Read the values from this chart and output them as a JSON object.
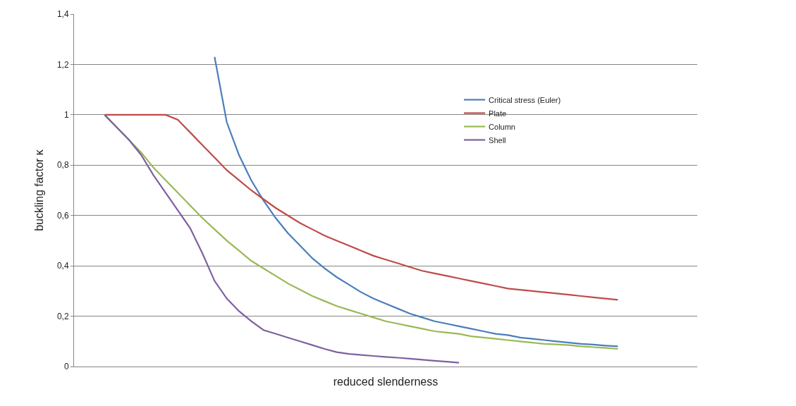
{
  "chart_data": {
    "type": "line",
    "xlabel": "reduced slenderness",
    "ylabel": "buckling factor κ",
    "categories": [
      null,
      null,
      null,
      null,
      null,
      null,
      null,
      null,
      null,
      null,
      null,
      null,
      null,
      null,
      null,
      null,
      null,
      null,
      null,
      null,
      null,
      null,
      null,
      null,
      null,
      null,
      null,
      null,
      null,
      null,
      null,
      null,
      null,
      null,
      null,
      null,
      null,
      null,
      null,
      null,
      null,
      null,
      null,
      null,
      null,
      null,
      null,
      null,
      null,
      null,
      null
    ],
    "series": [
      {
        "name": "Critical stress (Euler)",
        "color": "#4a7ebb",
        "values": [
          null,
          null,
          null,
          null,
          null,
          null,
          null,
          null,
          null,
          null,
          null,
          1.23,
          0.97,
          0.84,
          0.74,
          0.66,
          0.59,
          0.53,
          0.48,
          0.43,
          0.39,
          0.355,
          0.325,
          0.295,
          0.27,
          0.25,
          0.23,
          0.21,
          0.195,
          0.18,
          0.17,
          0.16,
          0.15,
          0.14,
          0.13,
          0.125,
          0.115,
          0.11,
          0.105,
          0.1,
          0.095,
          0.09,
          0.087,
          0.083,
          0.08,
          null,
          null,
          null,
          null,
          null,
          null
        ]
      },
      {
        "name": "Plate",
        "color": "#be4b48",
        "values": [
          null,
          null,
          1,
          1,
          1,
          1,
          1,
          1,
          0.98,
          0.93,
          0.88,
          0.83,
          0.78,
          0.74,
          0.7,
          0.665,
          0.63,
          0.6,
          0.57,
          0.545,
          0.52,
          0.5,
          0.48,
          0.46,
          0.44,
          0.425,
          0.41,
          0.395,
          0.38,
          0.37,
          0.36,
          0.35,
          0.34,
          0.33,
          0.32,
          0.31,
          0.305,
          0.3,
          0.295,
          0.29,
          0.285,
          0.28,
          0.275,
          0.27,
          0.265,
          null,
          null,
          null,
          null,
          null,
          null
        ]
      },
      {
        "name": "Column",
        "color": "#98b954",
        "values": [
          null,
          null,
          1,
          0.95,
          0.9,
          0.85,
          0.79,
          0.74,
          0.69,
          0.64,
          0.59,
          0.545,
          0.5,
          0.46,
          0.42,
          0.39,
          0.36,
          0.33,
          0.305,
          0.28,
          0.26,
          0.24,
          0.225,
          0.21,
          0.195,
          0.18,
          0.17,
          0.16,
          0.15,
          0.14,
          0.135,
          0.13,
          0.12,
          0.115,
          0.11,
          0.105,
          0.1,
          0.095,
          0.09,
          0.088,
          0.085,
          0.08,
          0.077,
          0.074,
          0.07,
          null,
          null,
          null,
          null,
          null,
          null
        ]
      },
      {
        "name": "Shell",
        "color": "#7d60a0",
        "values": [
          null,
          null,
          1,
          0.95,
          0.9,
          0.84,
          0.76,
          0.69,
          0.62,
          0.55,
          0.45,
          0.34,
          0.27,
          0.22,
          0.18,
          0.145,
          0.13,
          0.115,
          0.1,
          0.085,
          0.07,
          0.057,
          0.05,
          0.046,
          0.042,
          0.038,
          0.035,
          0.031,
          0.027,
          0.023,
          0.019,
          0.015,
          null,
          null,
          null,
          null,
          null,
          null,
          null,
          null,
          null,
          null,
          null,
          null,
          null,
          null,
          null,
          null,
          null,
          null,
          null
        ]
      }
    ],
    "ylim": [
      0,
      1.4
    ],
    "yticks": [
      0,
      {
        "value": 0.2,
        "label": "0,2"
      },
      {
        "value": 0.4,
        "label": "0,4"
      },
      {
        "value": 0.6,
        "label": "0,6"
      },
      {
        "value": 0.8,
        "label": "0,8"
      },
      1,
      {
        "value": 1.2,
        "label": "1,2"
      },
      {
        "value": 1.4,
        "label": "1,4"
      }
    ],
    "grid": "y",
    "legend": "right",
    "tick_labels": "y",
    "marker": "none",
    "line_style": "solid"
  }
}
